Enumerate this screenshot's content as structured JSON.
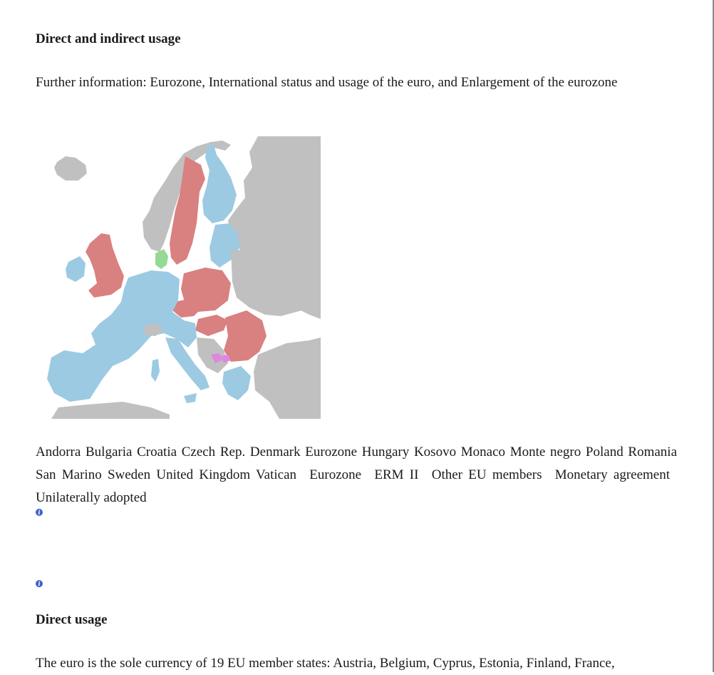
{
  "section_title": "Direct and indirect usage",
  "further_info": "Further information: Eurozone, International status and usage of the euro, and Enlargement of the eurozone",
  "map": {
    "labels": "Andorra Bulgaria Croatia Czech Rep. Denmark Eurozone Hungary Kosovo Monaco Monte negro Poland Romania San Marino Sweden United Kingdom Vatican",
    "legend": [
      "Eurozone",
      "ERM II",
      "Other EU members",
      "Monetary agreement",
      "Unilaterally adopted"
    ],
    "colors": {
      "eurozone": "#9ccae2",
      "erm_ii": "#96d896",
      "other_eu": "#d98080",
      "unilateral": "#dd88dd",
      "non_eu": "#c0c0c0"
    }
  },
  "info_icons": [
    "info-icon",
    "info-icon"
  ],
  "subsection_title": "Direct usage",
  "paragraph": "The euro is the sole currency of 19 EU member states: Austria, Belgium, Cyprus, Estonia, Finland, France,"
}
